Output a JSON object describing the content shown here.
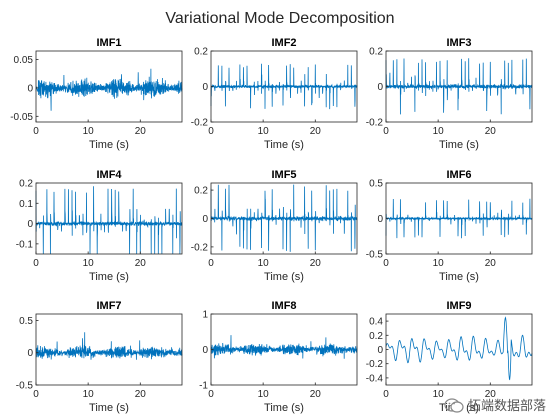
{
  "chart_data": {
    "type": "line",
    "title": "Variational Mode Decomposition",
    "series_color": "#0072BD",
    "xlabel": "Time (s)",
    "xlim": [
      0,
      28
    ],
    "xticks": [
      0,
      10,
      20
    ],
    "xtick_labels": [
      "0",
      "10",
      "20"
    ],
    "grid": false,
    "legend": "none",
    "panels": [
      {
        "name": "IMF1",
        "ylim": [
          -0.06,
          0.065
        ],
        "yticks": [
          -0.05,
          0,
          0.05
        ],
        "ytick_labels": [
          "-0.05",
          "0",
          "0.05"
        ],
        "style": "noise",
        "amp": 0.028,
        "peak": 0.06
      },
      {
        "name": "IMF2",
        "ylim": [
          -0.2,
          0.2
        ],
        "yticks": [
          -0.2,
          0,
          0.2
        ],
        "ytick_labels": [
          "-0.2",
          "0",
          "0.2"
        ],
        "style": "spikes",
        "amp": 0.11,
        "peak": 0.13
      },
      {
        "name": "IMF3",
        "ylim": [
          -0.2,
          0.2
        ],
        "yticks": [
          -0.2,
          0,
          0.2
        ],
        "ytick_labels": [
          "-0.2",
          "0",
          "0.2"
        ],
        "style": "spikes",
        "amp": 0.14,
        "peak": 0.16
      },
      {
        "name": "IMF4",
        "ylim": [
          -0.15,
          0.2
        ],
        "yticks": [
          -0.1,
          0,
          0.1,
          0.2
        ],
        "ytick_labels": [
          "-0.1",
          "0",
          "0.1",
          "0.2"
        ],
        "style": "spikes",
        "amp": 0.13,
        "peak": 0.19
      },
      {
        "name": "IMF5",
        "ylim": [
          -0.25,
          0.25
        ],
        "yticks": [
          -0.2,
          0,
          0.2
        ],
        "ytick_labels": [
          "-0.2",
          "0",
          "0.2"
        ],
        "style": "spikes",
        "amp": 0.18,
        "peak": 0.24
      },
      {
        "name": "IMF6",
        "ylim": [
          -0.5,
          0.5
        ],
        "yticks": [
          -0.5,
          0,
          0.5
        ],
        "ytick_labels": [
          "-0.5",
          "0",
          "0.5"
        ],
        "style": "spikes",
        "amp": 0.18,
        "peak": 0.28
      },
      {
        "name": "IMF7",
        "ylim": [
          -0.5,
          0.6
        ],
        "yticks": [
          -0.5,
          0,
          0.5
        ],
        "ytick_labels": [
          "-0.5",
          "0",
          "0.5"
        ],
        "style": "noise",
        "amp": 0.18,
        "peak": 0.55
      },
      {
        "name": "IMF8",
        "ylim": [
          -1,
          1
        ],
        "yticks": [
          -1,
          0,
          1
        ],
        "ytick_labels": [
          "-1",
          "0",
          "1"
        ],
        "style": "noise",
        "amp": 0.3,
        "peak": 0.85
      },
      {
        "name": "IMF9",
        "ylim": [
          -0.5,
          0.5
        ],
        "yticks": [
          -0.4,
          -0.2,
          0,
          0.2,
          0.4
        ],
        "ytick_labels": [
          "-0.4",
          "-0.2",
          "0",
          "0.2",
          "0.4"
        ],
        "style": "smooth",
        "amp": 0.2,
        "peak": 0.45
      }
    ]
  },
  "watermark": {
    "text": "拓端数据部落",
    "icon": "wechat-icon"
  }
}
